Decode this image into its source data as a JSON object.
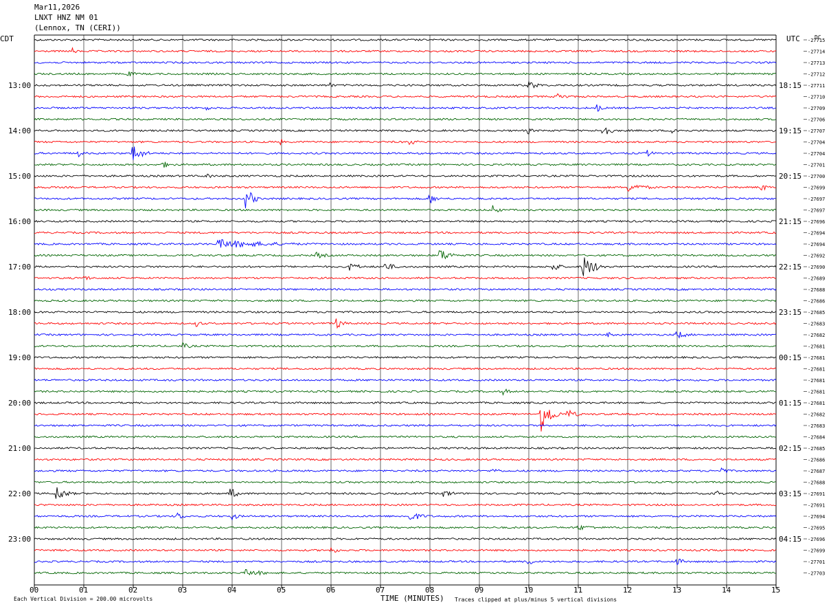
{
  "header": {
    "date": "Mar11,2026",
    "station": "LNXT HNZ NM 01",
    "location": "(Lennox, TN (CERI))"
  },
  "left_zone_label": "CDT",
  "right_zone_label": "UTC",
  "dc_label": "DC",
  "footer": {
    "scale_note": "Each Vertical Division =  200.00 microvolts",
    "xlabel": "TIME (MINUTES)",
    "clip_note": "Traces clipped at plus/minus 5 vertical divisions"
  },
  "colors": {
    "trace_cycle": [
      "#000000",
      "#ff0000",
      "#0000ff",
      "#006400"
    ],
    "grid": "#000000"
  },
  "chart_data": {
    "type": "line",
    "title": "LNXT HNZ NM 01",
    "xlabel": "TIME (MINUTES)",
    "xlim": [
      0,
      15
    ],
    "x_ticks": [
      "00",
      "01",
      "02",
      "03",
      "04",
      "05",
      "06",
      "07",
      "08",
      "09",
      "10",
      "11",
      "12",
      "13",
      "14",
      "15"
    ],
    "trace_count": 48,
    "left_time_labels": [
      {
        "row": 4,
        "label": "13:00"
      },
      {
        "row": 8,
        "label": "14:00"
      },
      {
        "row": 12,
        "label": "15:00"
      },
      {
        "row": 16,
        "label": "16:00"
      },
      {
        "row": 20,
        "label": "17:00"
      },
      {
        "row": 24,
        "label": "18:00"
      },
      {
        "row": 28,
        "label": "19:00"
      },
      {
        "row": 32,
        "label": "20:00"
      },
      {
        "row": 36,
        "label": "21:00"
      },
      {
        "row": 40,
        "label": "22:00"
      },
      {
        "row": 44,
        "label": "23:00"
      }
    ],
    "right_time_labels": [
      {
        "row": 4,
        "label": "18:15"
      },
      {
        "row": 8,
        "label": "19:15"
      },
      {
        "row": 12,
        "label": "20:15"
      },
      {
        "row": 16,
        "label": "21:15"
      },
      {
        "row": 20,
        "label": "22:15"
      },
      {
        "row": 24,
        "label": "23:15"
      },
      {
        "row": 28,
        "label": "00:15"
      },
      {
        "row": 32,
        "label": "01:15"
      },
      {
        "row": 36,
        "label": "02:15"
      },
      {
        "row": 40,
        "label": "03:15"
      },
      {
        "row": 44,
        "label": "04:15"
      }
    ],
    "dc_offsets": [
      "-27715",
      "-27714",
      "-27713",
      "-27712",
      "-27711",
      "-27710",
      "-27709",
      "-27706",
      "-27707",
      "-27704",
      "-27704",
      "-27701",
      "-27700",
      "-27699",
      "-27697",
      "-27697",
      "-27696",
      "-27694",
      "-27694",
      "-27692",
      "-27690",
      "-27689",
      "-27688",
      "-27686",
      "-27685",
      "-27683",
      "-27682",
      "-27681",
      "-27681",
      "-27681",
      "-27681",
      "-27681",
      "-27681",
      "-27682",
      "-27683",
      "-27684",
      "-27685",
      "-27686",
      "-27687",
      "-27688",
      "-27691",
      "-27691",
      "-27694",
      "-27695",
      "-27696",
      "-27699",
      "-27701",
      "-27703"
    ],
    "events": [
      {
        "row": 1,
        "minute": 0.8,
        "amp": 5,
        "dur": 0.15
      },
      {
        "row": 3,
        "minute": 1.9,
        "amp": 4,
        "dur": 0.4
      },
      {
        "row": 4,
        "minute": 6.0,
        "amp": 5,
        "dur": 0.1
      },
      {
        "row": 4,
        "minute": 10.0,
        "amp": 6,
        "dur": 0.5
      },
      {
        "row": 5,
        "minute": 10.6,
        "amp": 6,
        "dur": 0.4
      },
      {
        "row": 6,
        "minute": 11.4,
        "amp": 6,
        "dur": 0.2
      },
      {
        "row": 6,
        "minute": 3.5,
        "amp": 6,
        "dur": 0.1
      },
      {
        "row": 8,
        "minute": 11.5,
        "amp": 12,
        "dur": 0.3
      },
      {
        "row": 8,
        "minute": 12.9,
        "amp": 7,
        "dur": 0.3
      },
      {
        "row": 8,
        "minute": 10.0,
        "amp": 5,
        "dur": 0.2
      },
      {
        "row": 9,
        "minute": 7.6,
        "amp": 5,
        "dur": 0.3
      },
      {
        "row": 9,
        "minute": 5.0,
        "amp": 5,
        "dur": 0.1
      },
      {
        "row": 10,
        "minute": 2.0,
        "amp": 14,
        "dur": 0.4
      },
      {
        "row": 10,
        "minute": 0.9,
        "amp": 5,
        "dur": 0.3
      },
      {
        "row": 10,
        "minute": 12.4,
        "amp": 5,
        "dur": 0.3
      },
      {
        "row": 11,
        "minute": 2.6,
        "amp": 5,
        "dur": 0.5
      },
      {
        "row": 12,
        "minute": 3.5,
        "amp": 6,
        "dur": 0.2
      },
      {
        "row": 13,
        "minute": 12.0,
        "amp": 7,
        "dur": 0.8
      },
      {
        "row": 13,
        "minute": 14.7,
        "amp": 6,
        "dur": 0.3
      },
      {
        "row": 14,
        "minute": 4.3,
        "amp": 16,
        "dur": 0.3
      },
      {
        "row": 14,
        "minute": 8.0,
        "amp": 8,
        "dur": 0.3
      },
      {
        "row": 15,
        "minute": 9.3,
        "amp": 9,
        "dur": 0.2
      },
      {
        "row": 18,
        "minute": 3.7,
        "amp": 7,
        "dur": 2.5
      },
      {
        "row": 19,
        "minute": 8.2,
        "amp": 10,
        "dur": 0.5
      },
      {
        "row": 19,
        "minute": 5.7,
        "amp": 5,
        "dur": 0.5
      },
      {
        "row": 20,
        "minute": 11.1,
        "amp": 18,
        "dur": 0.5
      },
      {
        "row": 20,
        "minute": 10.5,
        "amp": 8,
        "dur": 0.3
      },
      {
        "row": 20,
        "minute": 6.4,
        "amp": 7,
        "dur": 0.4
      },
      {
        "row": 20,
        "minute": 7.1,
        "amp": 6,
        "dur": 0.5
      },
      {
        "row": 21,
        "minute": 1.0,
        "amp": 5,
        "dur": 0.3
      },
      {
        "row": 25,
        "minute": 6.1,
        "amp": 9,
        "dur": 0.3
      },
      {
        "row": 25,
        "minute": 3.3,
        "amp": 6,
        "dur": 0.2
      },
      {
        "row": 26,
        "minute": 11.6,
        "amp": 5,
        "dur": 0.2
      },
      {
        "row": 26,
        "minute": 13.0,
        "amp": 6,
        "dur": 0.5
      },
      {
        "row": 27,
        "minute": 3.0,
        "amp": 5,
        "dur": 0.4
      },
      {
        "row": 31,
        "minute": 9.5,
        "amp": 5,
        "dur": 0.3
      },
      {
        "row": 33,
        "minute": 10.25,
        "amp": 28,
        "dur": 0.4
      },
      {
        "row": 33,
        "minute": 10.8,
        "amp": 7,
        "dur": 0.4
      },
      {
        "row": 38,
        "minute": 9.3,
        "amp": 5,
        "dur": 0.3
      },
      {
        "row": 38,
        "minute": 13.9,
        "amp": 6,
        "dur": 0.3
      },
      {
        "row": 40,
        "minute": 0.45,
        "amp": 12,
        "dur": 0.4
      },
      {
        "row": 40,
        "minute": 3.95,
        "amp": 10,
        "dur": 0.3
      },
      {
        "row": 40,
        "minute": 8.3,
        "amp": 5,
        "dur": 0.5
      },
      {
        "row": 40,
        "minute": 13.8,
        "amp": 5,
        "dur": 0.3
      },
      {
        "row": 42,
        "minute": 2.9,
        "amp": 6,
        "dur": 0.3
      },
      {
        "row": 42,
        "minute": 4.0,
        "amp": 6,
        "dur": 0.3
      },
      {
        "row": 42,
        "minute": 7.6,
        "amp": 7,
        "dur": 0.6
      },
      {
        "row": 43,
        "minute": 11.0,
        "amp": 4,
        "dur": 1.0
      },
      {
        "row": 45,
        "minute": 6.0,
        "amp": 5,
        "dur": 0.4
      },
      {
        "row": 46,
        "minute": 10.0,
        "amp": 5,
        "dur": 0.3
      },
      {
        "row": 46,
        "minute": 13.0,
        "amp": 6,
        "dur": 0.3
      },
      {
        "row": 47,
        "minute": 4.3,
        "amp": 5,
        "dur": 1.0
      }
    ]
  }
}
